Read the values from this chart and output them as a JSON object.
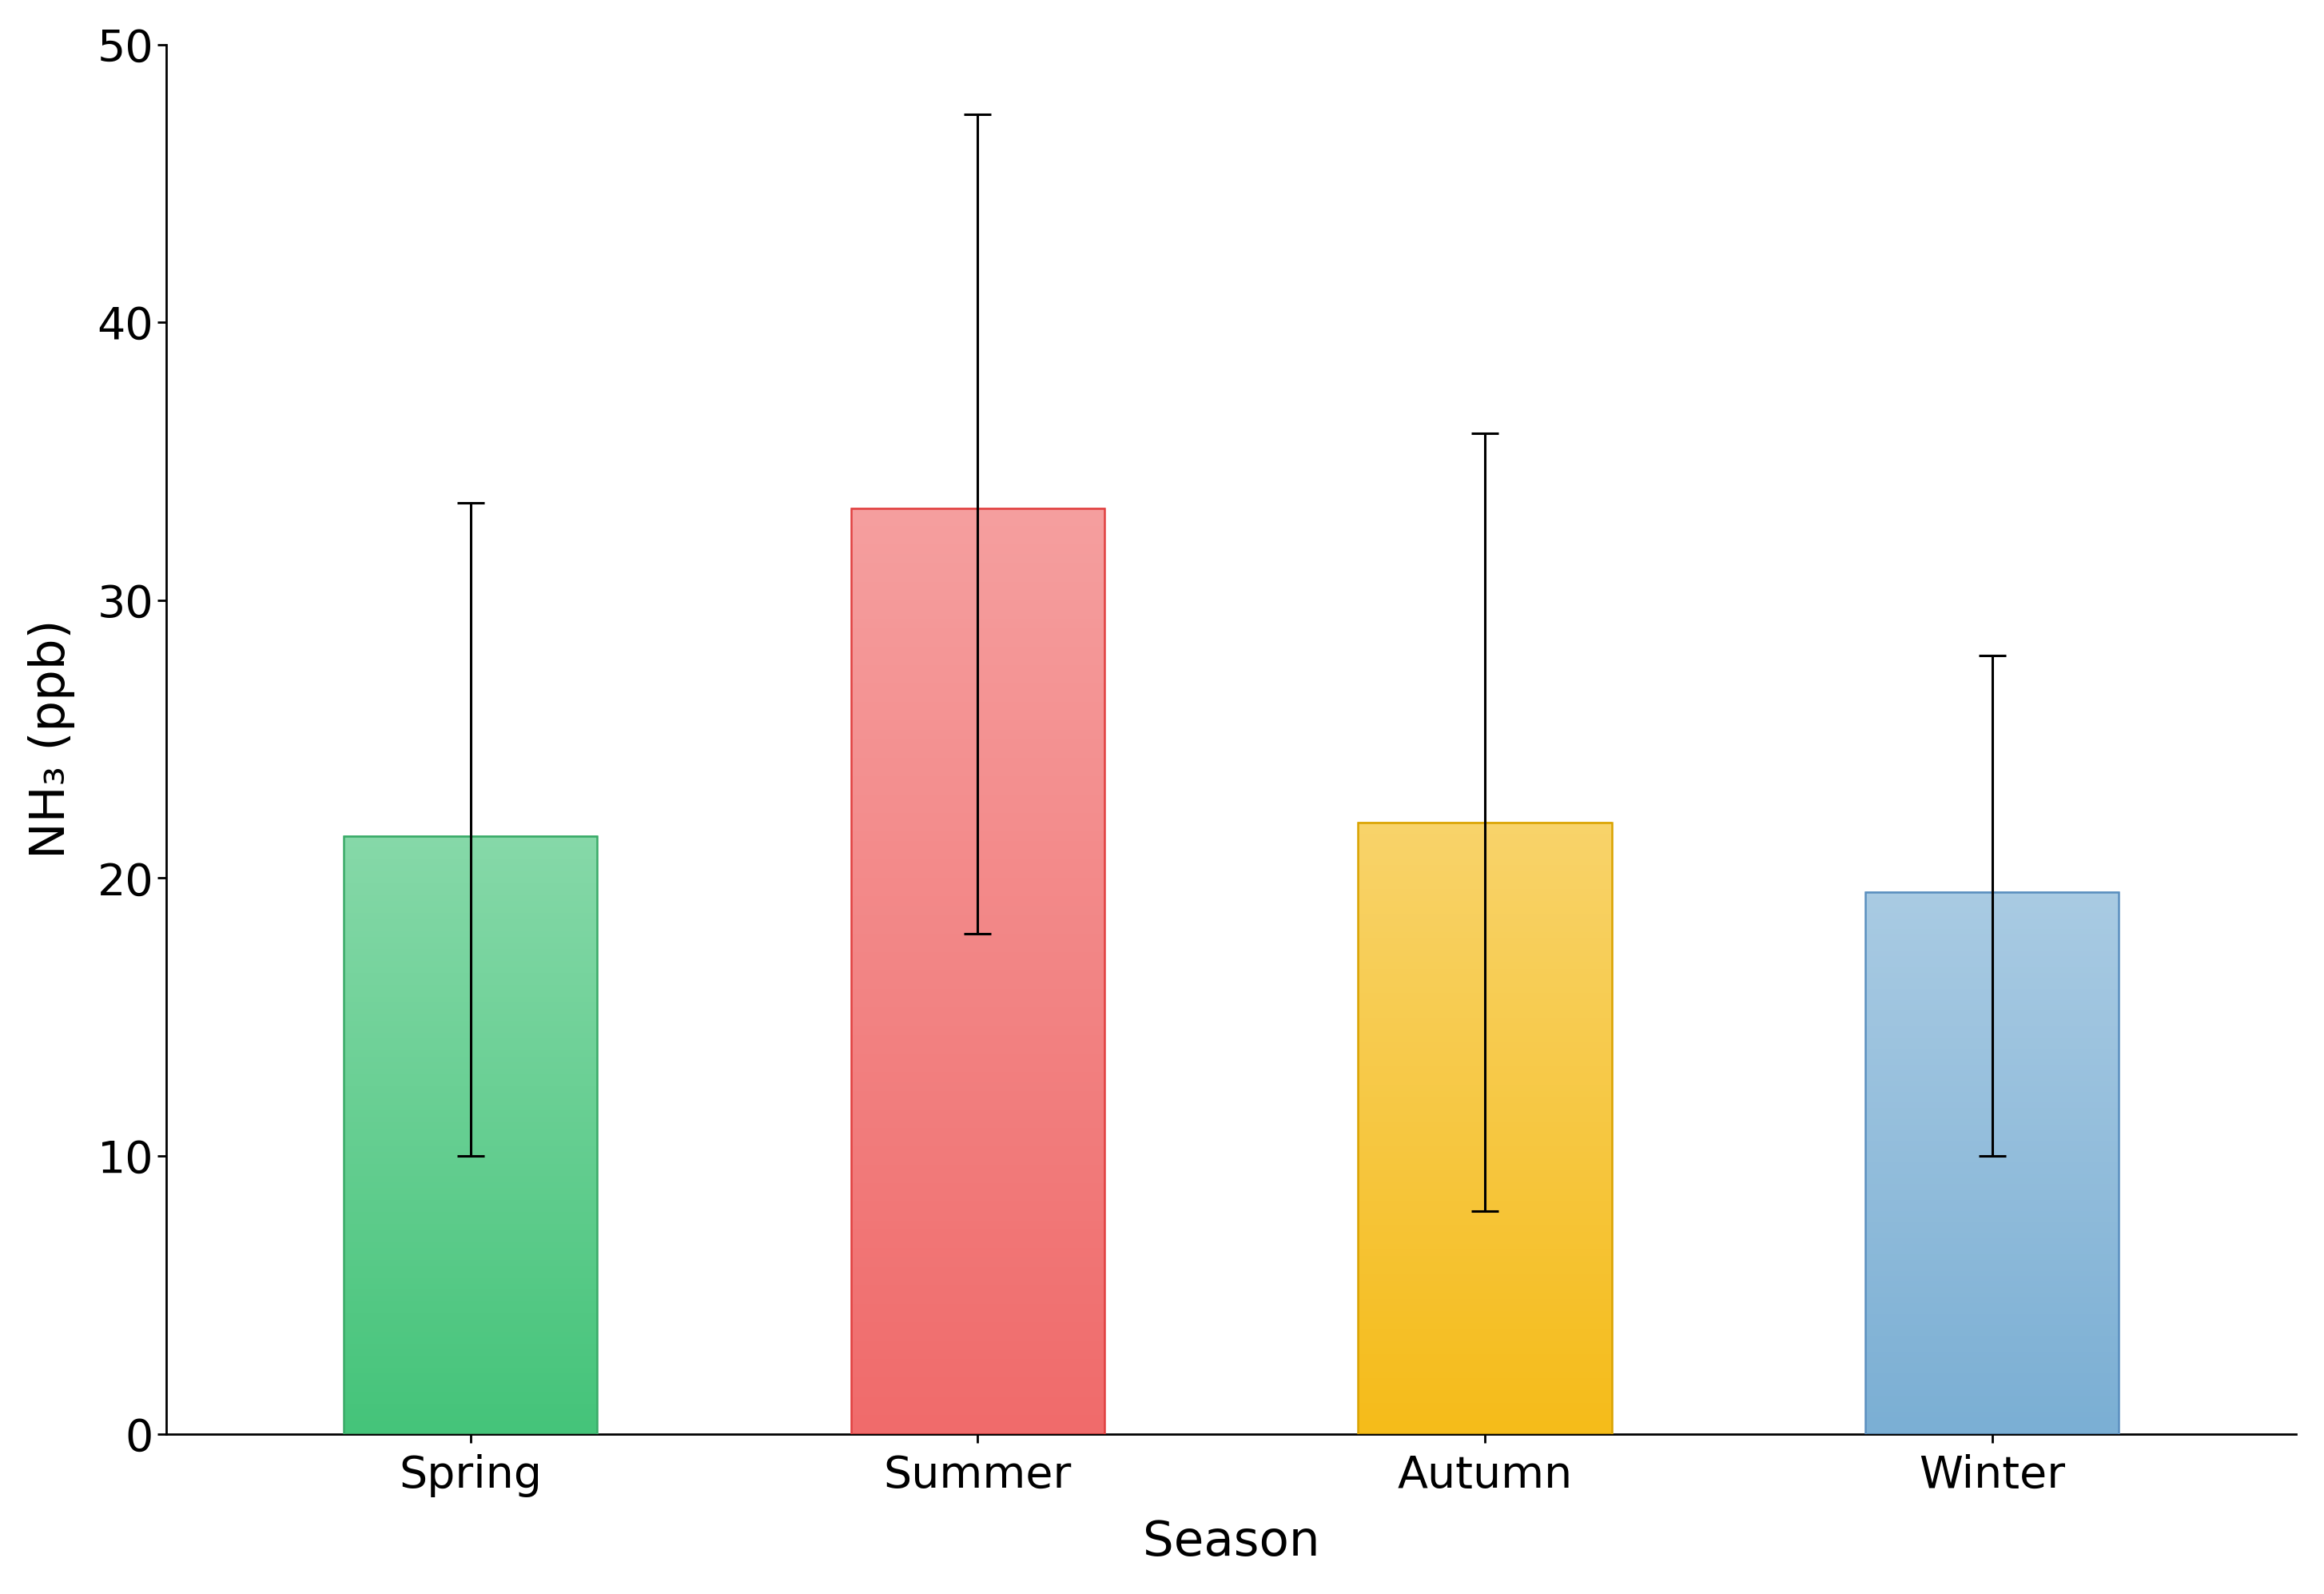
{
  "categories": [
    "Spring",
    "Summer",
    "Autumn",
    "Winter"
  ],
  "values": [
    21.5,
    33.3,
    22.0,
    19.5
  ],
  "errors_low": [
    11.5,
    15.3,
    14.0,
    9.5
  ],
  "errors_high": [
    12.0,
    14.2,
    14.0,
    8.5
  ],
  "bar_colors": [
    "#45c47a",
    "#f06b6b",
    "#f5bc1a",
    "#7bafd4"
  ],
  "bar_edgecolors": [
    "#3aaa68",
    "#e04040",
    "#d9a200",
    "#5a8fbf"
  ],
  "xlabel": "Season",
  "ylabel": "NH₃ (ppb)",
  "ylim": [
    0,
    50
  ],
  "yticks": [
    0,
    10,
    20,
    30,
    40,
    50
  ],
  "bar_width": 0.5,
  "capsize": 12,
  "error_linewidth": 2.2,
  "background_color": "#ffffff",
  "xlabel_fontsize": 44,
  "ylabel_fontsize": 44,
  "tick_fontsize": 40,
  "spine_linewidth": 2.0,
  "xlim_left": -0.6,
  "xlim_right": 3.6
}
